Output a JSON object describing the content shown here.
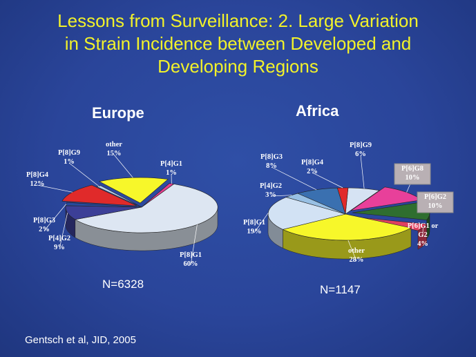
{
  "slide": {
    "title_line1": "Lessons from Surveillance: 2. Large Variation",
    "title_line2": "in Strain Incidence between Developed and",
    "title_line3": "Developing Regions",
    "citation": "Gentsch et al, JID, 2005"
  },
  "chart_data": [
    {
      "type": "pie",
      "title": "Europe",
      "n_label": "N=6328",
      "slices": [
        {
          "label": "P[8]G1",
          "value": 60,
          "pct": "60%",
          "color": "#dde6f2"
        },
        {
          "label": "P[4]G2",
          "value": 9,
          "pct": "9%",
          "color": "#3c3f97"
        },
        {
          "label": "P[8]G3",
          "value": 2,
          "pct": "2%",
          "color": "#274a9c"
        },
        {
          "label": "P[8]G4",
          "value": 12,
          "pct": "12%",
          "color": "#e02a2a"
        },
        {
          "label": "P[8]G9",
          "value": 1,
          "pct": "1%",
          "color": "#b8d4ee"
        },
        {
          "label": "other",
          "value": 15,
          "pct": "15%",
          "color": "#f7f72a"
        },
        {
          "label": "P[4]G1",
          "value": 1,
          "pct": "1%",
          "color": "#e63e8e"
        }
      ]
    },
    {
      "type": "pie",
      "title": "Africa",
      "n_label": "N=1147",
      "slices": [
        {
          "label": "P[8]G9",
          "value": 6,
          "pct": "6%",
          "color": "#d6e3f3"
        },
        {
          "label": "P[6]G8",
          "value": 10,
          "pct": "10%",
          "color": "#e8409a"
        },
        {
          "label": "P[6]G2",
          "value": 10,
          "pct": "10%",
          "color": "#2f6e2f"
        },
        {
          "label": "P[6]G1 or G2",
          "value": 4,
          "pct": "4%",
          "color": "#e04060"
        },
        {
          "label": "other",
          "value": 28,
          "pct": "28%",
          "color": "#f7f72a"
        },
        {
          "label": "P[8]G1",
          "value": 19,
          "pct": "19%",
          "color": "#d2e2f4"
        },
        {
          "label": "P[4]G2",
          "value": 3,
          "pct": "3%",
          "color": "#98c0e4"
        },
        {
          "label": "P[8]G3",
          "value": 8,
          "pct": "8%",
          "color": "#3a70b0"
        },
        {
          "label": "P[8]G4",
          "value": 2,
          "pct": "2%",
          "color": "#e02a2a"
        }
      ]
    }
  ]
}
